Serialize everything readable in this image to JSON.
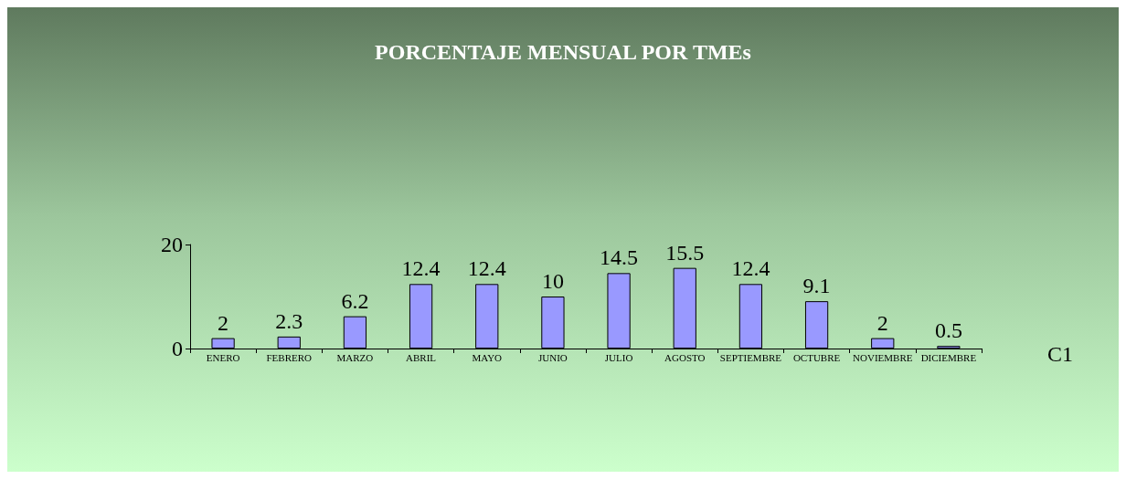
{
  "chart_data": {
    "type": "bar",
    "title": "PORCENTAJE MENSUAL POR TMEs",
    "categories": [
      "ENERO",
      "FEBRERO",
      "MARZO",
      "ABRIL",
      "MAYO",
      "JUNIO",
      "JULIO",
      "AGOSTO",
      "SEPTIEMBRE",
      "OCTUBRE",
      "NOVIEMBRE",
      "DICIEMBRE"
    ],
    "values": [
      2,
      2.3,
      6.2,
      12.4,
      12.4,
      10,
      14.5,
      15.5,
      12.4,
      9.1,
      2,
      0.5
    ],
    "color": "#9999ff",
    "ylim": [
      0,
      20
    ],
    "yticks": [
      0,
      20
    ],
    "grid": false,
    "data_labels": true,
    "annotations": [
      "C1"
    ]
  }
}
